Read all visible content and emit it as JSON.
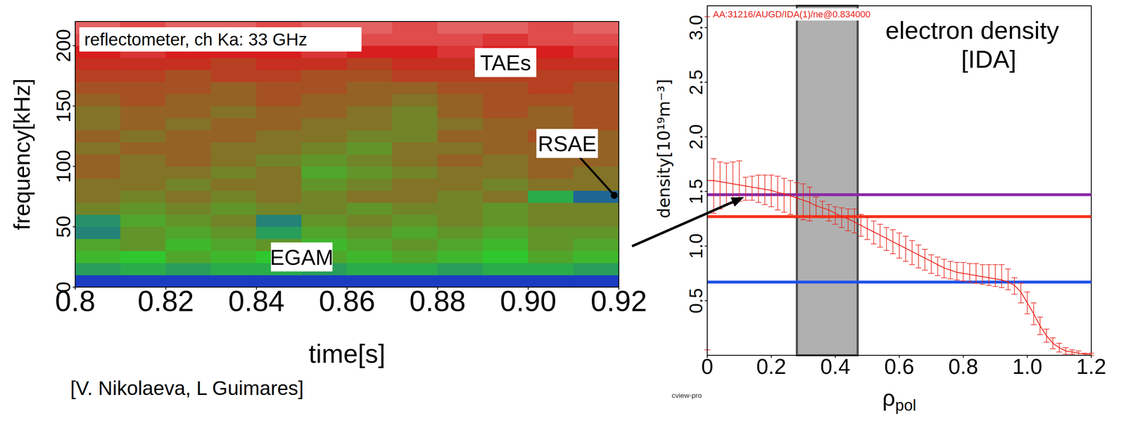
{
  "chart_data": [
    {
      "type": "heatmap",
      "title": "reflectometer, ch Ka: 33 GHz",
      "xlabel": "time[s]",
      "ylabel": "frequency[kHz]",
      "xlim": [
        0.8,
        0.92
      ],
      "xticks": [
        0.8,
        0.82,
        0.84,
        0.86,
        0.88,
        {
          "value": 0.9,
          "label": "0.90"
        },
        0.92
      ],
      "ylim": [
        0,
        220
      ],
      "yticks": [
        0,
        50,
        100,
        150,
        200
      ],
      "x_edges": [
        0.8,
        0.81,
        0.82,
        0.83,
        0.84,
        0.85,
        0.86,
        0.87,
        0.88,
        0.89,
        0.9,
        0.91,
        0.92
      ],
      "y_edges": [
        0,
        10,
        20,
        30,
        40,
        50,
        60,
        70,
        80,
        90,
        100,
        110,
        120,
        130,
        140,
        150,
        160,
        170,
        180,
        190,
        200,
        210,
        220
      ],
      "cells": [
        [
          3,
          3,
          3,
          3,
          3,
          3,
          3,
          3,
          3,
          3,
          3,
          3
        ],
        [
          2.3,
          2.2,
          2.3,
          2.2,
          2.2,
          2.3,
          2.2,
          2.2,
          2.3,
          2.2,
          2.2,
          2.3
        ],
        [
          1.9,
          2.0,
          1.8,
          1.9,
          2.0,
          1.8,
          1.9,
          1.8,
          1.9,
          2.0,
          1.8,
          1.9
        ],
        [
          1.8,
          1.7,
          1.9,
          1.8,
          1.7,
          1.9,
          1.8,
          1.7,
          1.8,
          1.9,
          1.7,
          1.8
        ],
        [
          2.5,
          1.7,
          1.8,
          1.7,
          2.3,
          1.8,
          1.7,
          1.8,
          1.7,
          1.8,
          1.7,
          1.7
        ],
        [
          2.4,
          1.8,
          1.7,
          1.6,
          2.5,
          1.7,
          1.6,
          1.7,
          1.6,
          1.7,
          1.6,
          1.6
        ],
        [
          1.6,
          1.7,
          1.6,
          1.7,
          1.6,
          1.6,
          1.7,
          1.6,
          1.6,
          1.7,
          1.6,
          1.6
        ],
        [
          1.5,
          1.6,
          1.5,
          1.6,
          1.5,
          1.6,
          1.5,
          1.5,
          1.6,
          1.5,
          2.2,
          2.7
        ],
        [
          1.5,
          1.5,
          1.6,
          1.5,
          1.5,
          1.7,
          1.6,
          1.5,
          1.5,
          1.6,
          1.5,
          1.5
        ],
        [
          1.4,
          1.5,
          1.5,
          1.6,
          1.5,
          1.8,
          1.7,
          1.6,
          1.5,
          1.5,
          1.4,
          1.5
        ],
        [
          1.4,
          1.5,
          1.4,
          1.5,
          1.6,
          1.7,
          1.6,
          1.5,
          1.4,
          1.5,
          1.4,
          1.4
        ],
        [
          1.5,
          1.4,
          1.4,
          1.5,
          1.5,
          1.6,
          1.7,
          1.5,
          1.5,
          1.4,
          1.4,
          1.4
        ],
        [
          1.4,
          1.5,
          1.4,
          1.4,
          1.5,
          1.5,
          1.6,
          1.6,
          1.4,
          1.4,
          1.3,
          1.4
        ],
        [
          1.5,
          1.4,
          1.5,
          1.4,
          1.4,
          1.5,
          1.5,
          1.6,
          1.5,
          1.4,
          1.4,
          1.3
        ],
        [
          1.5,
          1.4,
          1.4,
          1.5,
          1.4,
          1.4,
          1.5,
          1.6,
          1.4,
          1.3,
          1.4,
          1.3
        ],
        [
          1.4,
          1.3,
          1.4,
          1.4,
          1.3,
          1.4,
          1.4,
          1.5,
          1.4,
          1.3,
          1.3,
          1.3
        ],
        [
          1.3,
          1.3,
          1.3,
          1.4,
          1.3,
          1.3,
          1.4,
          1.4,
          1.3,
          1.3,
          1.2,
          1.3
        ],
        [
          1.2,
          1.2,
          1.3,
          1.2,
          1.2,
          1.3,
          1.3,
          1.2,
          1.2,
          1.2,
          1.2,
          1.2
        ],
        [
          1.1,
          1.1,
          1.1,
          1.2,
          1.1,
          1.1,
          1.2,
          1.1,
          1.1,
          1.1,
          1.1,
          1.1
        ],
        [
          1.0,
          0.9,
          1.0,
          1.0,
          1.0,
          0.9,
          1.0,
          1.0,
          0.9,
          1.0,
          1.0,
          0.9
        ],
        [
          0.8,
          0.8,
          0.9,
          0.8,
          0.8,
          0.9,
          0.8,
          0.8,
          0.8,
          0.9,
          0.8,
          0.8
        ],
        [
          0.7,
          0.8,
          0.7,
          0.7,
          0.8,
          0.7,
          0.7,
          0.8,
          0.7,
          0.7,
          0.8,
          0.7
        ]
      ],
      "annotations": [
        {
          "text": "TAEs",
          "x": 0.895,
          "y": 186
        },
        {
          "text": "RSAE",
          "x": 0.9086,
          "y": 119,
          "arrow_to": [
            0.919,
            76
          ]
        },
        {
          "text": "EGAM",
          "x": 0.85,
          "y": 25
        }
      ],
      "source": "[V. Nikolaeva, L Guimares]"
    },
    {
      "type": "line",
      "title": "electron density",
      "subtitle": "[IDA]",
      "id_label": "AA:31216/AUGD/IDA(1)/ne@0.834000",
      "xlabel": "ρpol",
      "ylabel": "density[10¹⁹m⁻³]",
      "xlim": [
        0,
        1.2
      ],
      "xticks": [
        0,
        0.2,
        0.4,
        0.6,
        0.8,
        {
          "value": 1,
          "label": "1.0"
        },
        1.2
      ],
      "ylim": [
        0,
        3.2
      ],
      "yticks": [
        0.5,
        {
          "value": 1,
          "label": "1.0"
        },
        1.5,
        {
          "value": 2,
          "label": "2.0"
        },
        2.5,
        {
          "value": 3,
          "label": "3.0"
        }
      ],
      "x": [
        0,
        0.02,
        0.04,
        0.06,
        0.08,
        0.1,
        0.12,
        0.14,
        0.16,
        0.18,
        0.2,
        0.22,
        0.24,
        0.26,
        0.28,
        0.3,
        0.32,
        0.34,
        0.36,
        0.38,
        0.4,
        0.42,
        0.44,
        0.46,
        0.48,
        0.5,
        0.52,
        0.54,
        0.56,
        0.58,
        0.6,
        0.62,
        0.64,
        0.66,
        0.68,
        0.7,
        0.72,
        0.74,
        0.76,
        0.78,
        0.8,
        0.82,
        0.84,
        0.86,
        0.88,
        0.9,
        0.92,
        0.94,
        0.96,
        0.98,
        1.0,
        1.02,
        1.04,
        1.06,
        1.08,
        1.1,
        1.12,
        1.14,
        1.16,
        1.18,
        1.2
      ],
      "series": [
        {
          "color": "#e8231b",
          "values": [
            1.6,
            1.6,
            1.59,
            1.58,
            1.57,
            1.56,
            1.55,
            1.54,
            1.53,
            1.52,
            1.51,
            1.49,
            1.48,
            1.46,
            1.44,
            1.42,
            1.4,
            1.37,
            1.35,
            1.33,
            1.3,
            1.27,
            1.25,
            1.22,
            1.19,
            1.16,
            1.13,
            1.1,
            1.07,
            1.04,
            1.01,
            0.98,
            0.95,
            0.92,
            0.89,
            0.86,
            0.83,
            0.8,
            0.78,
            0.76,
            0.75,
            0.74,
            0.73,
            0.72,
            0.71,
            0.7,
            0.69,
            0.67,
            0.64,
            0.58,
            0.48,
            0.38,
            0.27,
            0.18,
            0.11,
            0.07,
            0.04,
            0.03,
            0.02,
            0.01,
            0.01
          ],
          "errors": [
            [
              1.55,
              1.5
            ],
            [
              0.3,
              0.2
            ],
            [
              0.25,
              0.18
            ],
            [
              0.2,
              0.18
            ],
            [
              0.18,
              0.2
            ],
            [
              0.15,
              0.22
            ],
            [
              0.13,
              0.08
            ],
            [
              0.12,
              0.1
            ],
            [
              0.13,
              0.12
            ],
            [
              0.14,
              0.13
            ],
            [
              0.15,
              0.14
            ],
            [
              0.16,
              0.15
            ],
            [
              0.17,
              0.14
            ],
            [
              0.17,
              0.14
            ],
            [
              0.18,
              0.14
            ],
            [
              0.18,
              0.15
            ],
            [
              0.17,
              0.14
            ],
            [
              0.1,
              0.08
            ],
            [
              0.09,
              0.06
            ],
            [
              0.1,
              0.05
            ],
            [
              0.1,
              0.06
            ],
            [
              0.1,
              0.08
            ],
            [
              0.11,
              0.09
            ],
            [
              0.1,
              0.12
            ],
            [
              0.1,
              0.1
            ],
            [
              0.1,
              0.1
            ],
            [
              0.11,
              0.1
            ],
            [
              0.11,
              0.1
            ],
            [
              0.11,
              0.1
            ],
            [
              0.11,
              0.11
            ],
            [
              0.12,
              0.11
            ],
            [
              0.12,
              0.11
            ],
            [
              0.12,
              0.1
            ],
            [
              0.12,
              0.09
            ],
            [
              0.11,
              0.08
            ],
            [
              0.11,
              0.06
            ],
            [
              0.1,
              0.07
            ],
            [
              0.09,
              0.08
            ],
            [
              0.08,
              0.08
            ],
            [
              0.07,
              0.09
            ],
            [
              0.07,
              0.1
            ],
            [
              0.07,
              0.1
            ],
            [
              0.07,
              0.11
            ],
            [
              0.07,
              0.11
            ],
            [
              0.07,
              0.12
            ],
            [
              0.07,
              0.13
            ],
            [
              0.07,
              0.14
            ],
            [
              0.07,
              0.12
            ],
            [
              0.08,
              0.07
            ],
            [
              0.1,
              0.08
            ],
            [
              0.1,
              0.1
            ],
            [
              0.1,
              0.1
            ],
            [
              0.08,
              0.08
            ],
            [
              0.06,
              0.06
            ],
            [
              0.05,
              0.05
            ],
            [
              0.04,
              0.04
            ],
            [
              0.03,
              0.03
            ],
            [
              0.02,
              0.02
            ],
            [
              0.02,
              0.02
            ],
            [
              0.01,
              0.01
            ],
            [
              0.01,
              0.01
            ]
          ]
        }
      ],
      "shaded": [
        0.28,
        0.47
      ],
      "hlines": [
        {
          "y": 1.47,
          "color": "#8a2aa6"
        },
        {
          "y": 1.27,
          "color": "#f5331a"
        },
        {
          "y": 0.67,
          "color": "#2050e8"
        }
      ],
      "footnote": "cview-pro"
    }
  ]
}
